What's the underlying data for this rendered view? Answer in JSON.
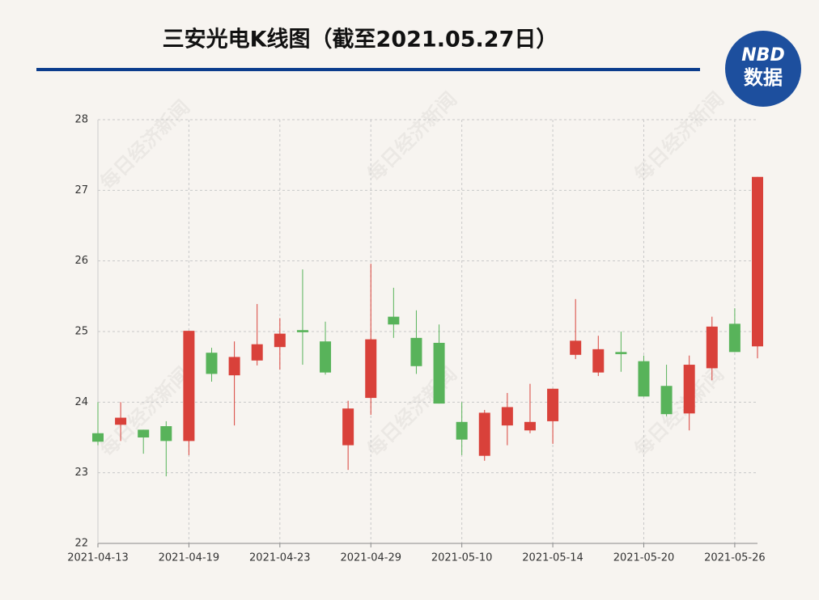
{
  "chart_data": {
    "type": "candlestick",
    "title": "三安光电K线图（截至2021.05.27日）",
    "logo": [
      "NBD",
      "数据"
    ],
    "watermark": "每日经济新闻",
    "categories": [
      "2021-04-13",
      null,
      null,
      null,
      "2021-04-19",
      null,
      null,
      null,
      "2021-04-23",
      null,
      null,
      null,
      "2021-04-29",
      null,
      null,
      null,
      "2021-05-10",
      null,
      null,
      null,
      "2021-05-14",
      null,
      null,
      null,
      "2021-05-20",
      null,
      null,
      null,
      "2021-05-26",
      null
    ],
    "open": [
      23.56,
      23.68,
      23.61,
      23.66,
      23.45,
      24.7,
      24.38,
      24.59,
      24.78,
      25.02,
      24.86,
      23.39,
      24.06,
      25.21,
      24.91,
      24.84,
      23.72,
      23.24,
      23.67,
      23.6,
      23.73,
      24.67,
      24.42,
      24.71,
      24.58,
      24.23,
      23.84,
      24.48,
      25.11,
      24.79
    ],
    "high": [
      24.0,
      24.0,
      23.61,
      23.73,
      25.01,
      24.77,
      24.86,
      25.39,
      25.19,
      25.88,
      25.14,
      24.02,
      25.96,
      25.62,
      25.3,
      25.1,
      24.0,
      23.89,
      24.13,
      24.26,
      24.19,
      25.46,
      24.94,
      25.0,
      24.66,
      24.53,
      24.66,
      25.21,
      25.33,
      27.19
    ],
    "low": [
      23.39,
      23.45,
      23.27,
      22.95,
      23.25,
      24.29,
      23.67,
      24.52,
      24.46,
      24.53,
      24.39,
      23.04,
      23.82,
      24.91,
      24.4,
      23.98,
      23.25,
      23.17,
      23.39,
      23.56,
      23.41,
      24.61,
      24.37,
      24.43,
      24.08,
      23.8,
      23.6,
      24.31,
      24.71,
      24.62
    ],
    "close": [
      23.44,
      23.78,
      23.5,
      23.45,
      25.01,
      24.4,
      24.64,
      24.82,
      24.97,
      24.99,
      24.42,
      23.91,
      24.89,
      25.1,
      24.51,
      23.98,
      23.47,
      23.85,
      23.93,
      23.72,
      24.19,
      24.87,
      24.75,
      24.68,
      24.08,
      23.83,
      24.53,
      25.07,
      24.71,
      27.19
    ],
    "up_color": "#d9413a",
    "down_color": "#58b35a",
    "ylim": [
      22,
      28
    ],
    "yticks": [
      22,
      23,
      24,
      25,
      26,
      27,
      28
    ],
    "grid": true
  }
}
